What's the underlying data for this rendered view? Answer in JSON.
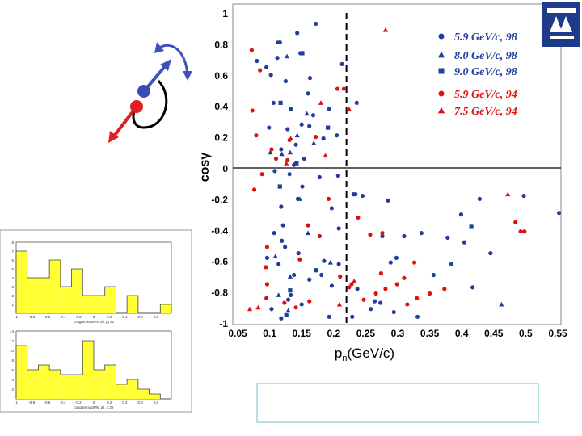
{
  "slide": {
    "logo_label": "TAU logo",
    "caption_box_text": ""
  },
  "colors": {
    "blue_series": "#1f3f9e",
    "red_series": "#e01010",
    "arrow_blue": "#4050c0",
    "arrow_red": "#e02020",
    "inset_bar": "#ffff33",
    "caption_border": "#b7dfe6"
  },
  "icons": [
    "momentum-vectors-diagram",
    "tau-logo"
  ],
  "chart_data": {
    "type": "scatter",
    "title": "",
    "xlabel": "pn(GeV/c)",
    "xlabel_main": "p",
    "xlabel_sub": "n",
    "xlabel_rest": "(GeV/c)",
    "ylabel": "cosγ",
    "xlim": [
      0.05,
      0.55
    ],
    "ylim": [
      -1,
      1
    ],
    "xticks": [
      "0.05",
      "0.1",
      "0.15",
      "0.2",
      "0.25",
      "0.3",
      "0.35",
      "0.4",
      "0.45",
      "0.5",
      "0.55"
    ],
    "yticks": [
      "1",
      "0.8",
      "0.6",
      "0.4",
      "0.2",
      "0",
      "-0.2",
      "-0.4",
      "-0.6",
      "-0.8",
      "-1"
    ],
    "cut_line_x": 0.22,
    "legend_position": "top-right",
    "legend": [
      {
        "label": "5.9 GeV/c, 98",
        "marker": "circle",
        "color": "blue"
      },
      {
        "label": "8.0 GeV/c, 98",
        "marker": "triangle",
        "color": "blue"
      },
      {
        "label": "9.0 GeV/c, 98",
        "marker": "square",
        "color": "blue"
      },
      {
        "label": "5.9 GeV/c, 94",
        "marker": "circle",
        "color": "red"
      },
      {
        "label": "7.5 GeV/c, 94",
        "marker": "triangle",
        "color": "red"
      }
    ],
    "series": [
      {
        "name": "5.9 GeV/c, 98",
        "marker": "circle",
        "color": "blue",
        "x": [
          0.116,
          0.143,
          0.172,
          0.213,
          0.236,
          0.08,
          0.095,
          0.112,
          0.148,
          0.163,
          0.102,
          0.125,
          0.16,
          0.106,
          0.133,
          0.168,
          0.15,
          0.193,
          0.099,
          0.128,
          0.141,
          0.162,
          0.184,
          0.205,
          0.118,
          0.138,
          0.154,
          0.178,
          0.108,
          0.131,
          0.151,
          0.207,
          0.231,
          0.234,
          0.245,
          0.285,
          0.118,
          0.144,
          0.121,
          0.197,
          0.208,
          0.276,
          0.399,
          0.428,
          0.497,
          0.552,
          0.107,
          0.119,
          0.124,
          0.145,
          0.185,
          0.289,
          0.31,
          0.337,
          0.378,
          0.404,
          0.445,
          0.096,
          0.114,
          0.138,
          0.162,
          0.181,
          0.197,
          0.208,
          0.298,
          0.356,
          0.384,
          0.417,
          0.237,
          0.264,
          0.103,
          0.129,
          0.15,
          0.193,
          0.229,
          0.273,
          0.118,
          0.133,
          0.258,
          0.294,
          0.331
        ],
        "y": [
          0.81,
          0.87,
          0.93,
          0.67,
          0.42,
          0.69,
          0.65,
          0.71,
          0.74,
          0.58,
          0.6,
          0.56,
          0.48,
          0.42,
          0.38,
          0.34,
          0.28,
          0.38,
          0.26,
          0.25,
          0.15,
          0.27,
          0.19,
          0.21,
          0.12,
          0.02,
          0.06,
          -0.06,
          -0.02,
          -0.04,
          -0.12,
          -0.05,
          -0.17,
          -0.17,
          -0.18,
          -0.21,
          -0.25,
          -0.2,
          -0.37,
          -0.26,
          -0.39,
          -0.44,
          -0.3,
          -0.2,
          -0.18,
          -0.29,
          -0.42,
          -0.47,
          -0.51,
          -0.55,
          -0.6,
          -0.61,
          -0.44,
          -0.42,
          -0.45,
          -0.48,
          -0.55,
          -0.58,
          -0.62,
          -0.69,
          -0.72,
          -0.69,
          -0.76,
          -0.62,
          -0.58,
          -0.69,
          -0.62,
          -0.77,
          -0.78,
          -0.86,
          -0.91,
          -0.85,
          -0.88,
          -0.96,
          -0.96,
          -0.87,
          -0.97,
          -0.82,
          -0.91,
          -0.93,
          -0.96
        ]
      },
      {
        "name": "8.0 GeV/c, 98",
        "marker": "triangle",
        "color": "blue",
        "x": [
          0.112,
          0.127,
          0.158,
          0.101,
          0.143,
          0.132,
          0.119,
          0.169,
          0.147,
          0.109,
          0.132,
          0.195,
          0.16,
          0.129,
          0.114,
          0.462
        ],
        "y": [
          0.81,
          0.72,
          0.35,
          0.1,
          0.21,
          0.1,
          0.09,
          0.16,
          -0.2,
          -0.57,
          -0.7,
          -0.61,
          -0.42,
          -0.92,
          -0.82,
          -0.88
        ]
      },
      {
        "name": "9.0 GeV/c, 98",
        "marker": "square",
        "color": "blue",
        "x": [
          0.151,
          0.117,
          0.191,
          0.142,
          0.116,
          0.172,
          0.132,
          0.415,
          0.126
        ],
        "y": [
          0.74,
          0.42,
          0.26,
          0.03,
          -0.12,
          -0.66,
          -0.79,
          -0.38,
          -0.95
        ]
      },
      {
        "name": "5.9 GeV/c, 94",
        "marker": "circle",
        "color": "red",
        "x": [
          0.072,
          0.085,
          0.073,
          0.079,
          0.103,
          0.11,
          0.131,
          0.128,
          0.206,
          0.172,
          0.216,
          0.088,
          0.076,
          0.192,
          0.16,
          0.178,
          0.238,
          0.257,
          0.276,
          0.274,
          0.31,
          0.281,
          0.326,
          0.299,
          0.35,
          0.373,
          0.096,
          0.147,
          0.094,
          0.21,
          0.228,
          0.33,
          0.096,
          0.095,
          0.162,
          0.123,
          0.141,
          0.224,
          0.315,
          0.266,
          0.247,
          0.484,
          0.492,
          0.498
        ],
        "y": [
          0.76,
          0.63,
          0.37,
          0.21,
          0.12,
          0.06,
          0.18,
          0.05,
          0.51,
          0.2,
          0.51,
          -0.04,
          -0.14,
          -0.2,
          -0.37,
          -0.44,
          -0.32,
          -0.43,
          -0.42,
          -0.68,
          -0.71,
          -0.78,
          -0.61,
          -0.75,
          -0.81,
          -0.78,
          -0.51,
          -0.59,
          -0.64,
          -0.7,
          -0.75,
          -0.84,
          -0.75,
          -0.84,
          -0.86,
          -0.87,
          -0.9,
          -0.77,
          -0.88,
          -0.81,
          -0.85,
          -0.35,
          -0.41,
          -0.41
        ]
      },
      {
        "name": "7.5 GeV/c, 94",
        "marker": "triangle",
        "color": "red",
        "x": [
          0.281,
          0.224,
          0.18,
          0.187,
          0.126,
          0.133,
          0.472,
          0.069,
          0.082,
          0.209,
          0.232
        ],
        "y": [
          0.89,
          0.38,
          0.42,
          0.08,
          0.03,
          0.19,
          -0.17,
          -0.91,
          -0.9,
          -0.88,
          -0.73
        ]
      }
    ]
  },
  "inset_charts": [
    {
      "type": "bar",
      "caption": "cosgamma0PN, all, gt 22",
      "ylim": [
        0,
        8
      ],
      "yticks": [
        "1",
        "2",
        "3",
        "4",
        "5",
        "6",
        "7",
        "8"
      ],
      "xticks": [
        "-1",
        "-0.8",
        "-0.6",
        "-0.4",
        "-0.2",
        "0",
        "0.2",
        "0.4",
        "0.6",
        "0.8"
      ],
      "values": [
        7,
        4,
        4,
        6,
        3,
        5,
        2,
        2,
        3,
        0,
        2,
        0,
        0,
        1
      ]
    },
    {
      "type": "bar",
      "caption": "cosgamma0PN, all, 1.22",
      "ylim": [
        0,
        14
      ],
      "yticks": [
        "2",
        "4",
        "6",
        "8",
        "10",
        "12",
        "14"
      ],
      "xticks": [
        "-1",
        "-0.8",
        "-0.6",
        "-0.4",
        "-0.2",
        "0",
        "0.2",
        "0.4",
        "0.6",
        "0.8"
      ],
      "values": [
        11,
        6,
        7,
        6,
        5,
        5,
        12,
        6,
        7,
        3,
        4,
        2,
        1,
        0
      ]
    }
  ]
}
